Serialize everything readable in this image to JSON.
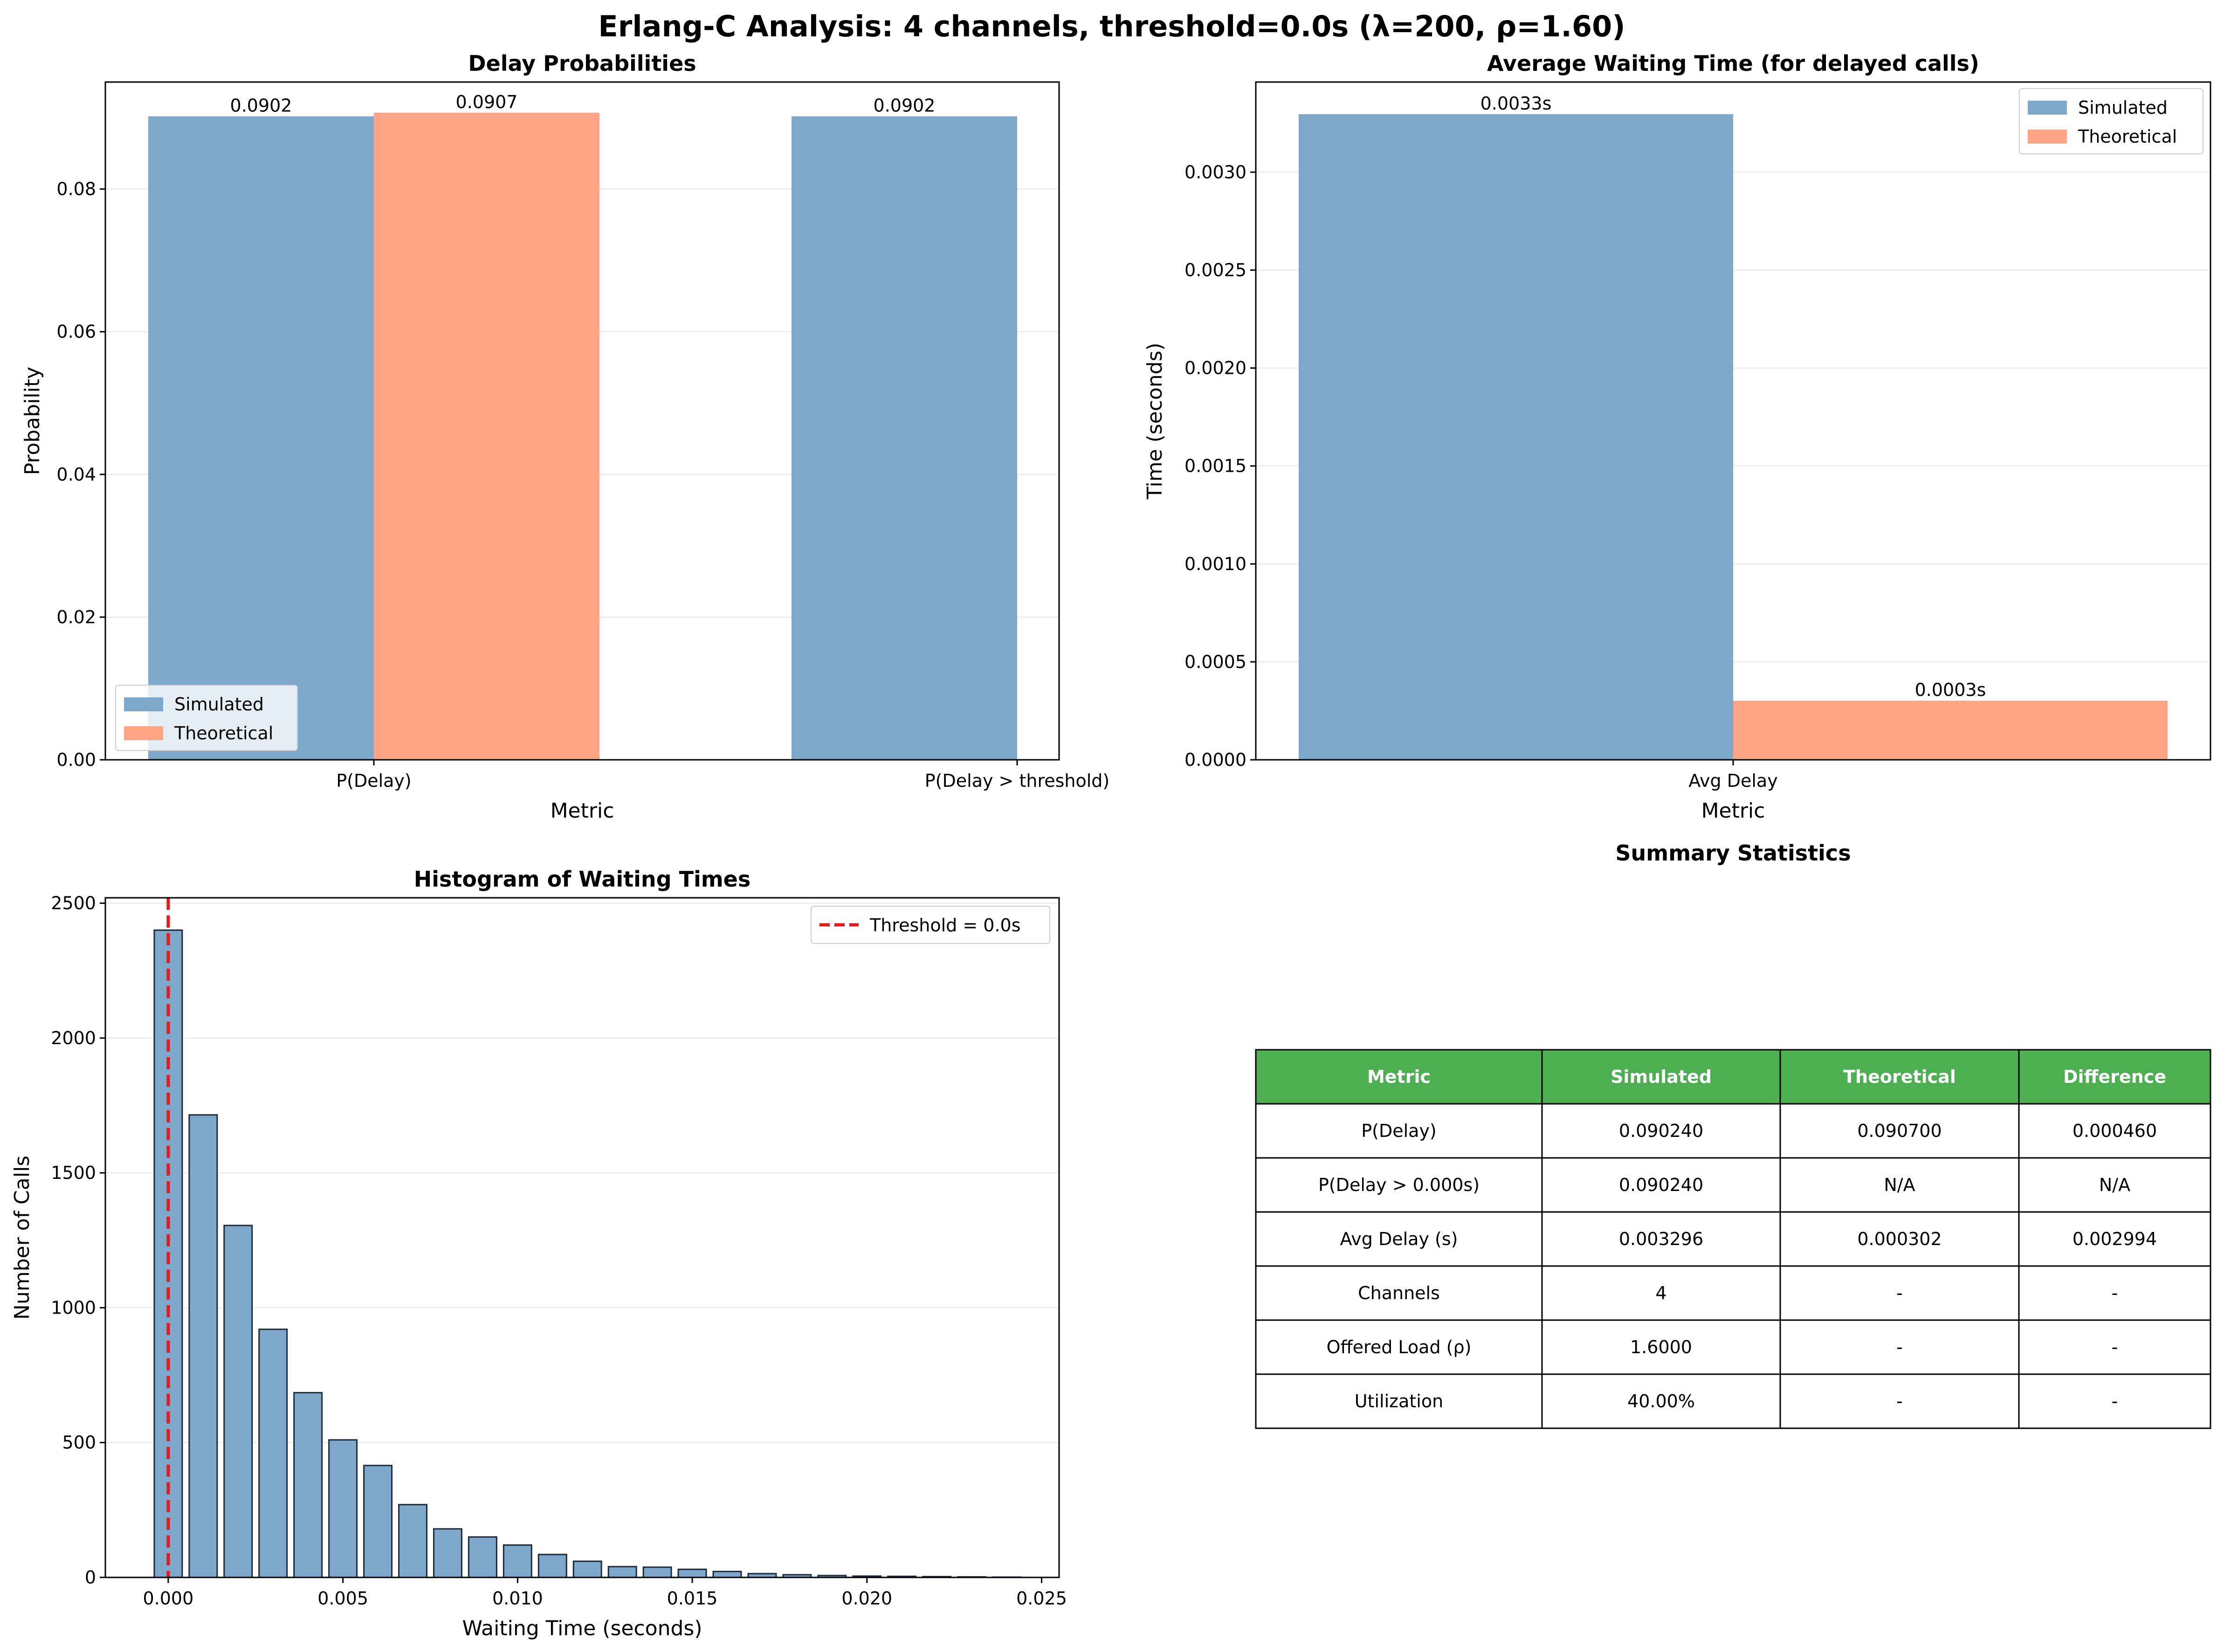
{
  "figure": {
    "title": "Erlang-C Analysis: 4 channels, threshold=0.0s (λ=200, ρ=1.60)"
  },
  "colors": {
    "simulated": "#7ea7cc",
    "theoretical": "#ffa585",
    "threshold_line": "#e41a1c",
    "table_header": "#4caf50",
    "grid": "#e6e6e6"
  },
  "chart_data": [
    {
      "type": "bar",
      "title": "Delay Probabilities",
      "xlabel": "Metric",
      "ylabel": "Probability",
      "categories": [
        "P(Delay)",
        "P(Delay > threshold)"
      ],
      "series": [
        {
          "name": "Simulated",
          "values": [
            0.0902,
            0.0902
          ],
          "labels": [
            "0.0902",
            "0.0902"
          ]
        },
        {
          "name": "Theoretical",
          "values": [
            0.0907,
            null
          ],
          "labels": [
            "0.0907",
            null
          ]
        }
      ],
      "ylim": [
        0,
        0.095
      ],
      "yticks": [
        "0.00",
        "0.02",
        "0.04",
        "0.06",
        "0.08"
      ],
      "grid": "y",
      "legend": "lower-left"
    },
    {
      "type": "bar",
      "title": "Average Waiting Time (for delayed calls)",
      "xlabel": "Metric",
      "ylabel": "Time (seconds)",
      "categories": [
        "Avg Delay"
      ],
      "series": [
        {
          "name": "Simulated",
          "values": [
            0.003296
          ],
          "labels": [
            "0.0033s"
          ]
        },
        {
          "name": "Theoretical",
          "values": [
            0.000302
          ],
          "labels": [
            "0.0003s"
          ]
        }
      ],
      "ylim": [
        0,
        0.00346
      ],
      "yticks": [
        "0.0000",
        "0.0005",
        "0.0010",
        "0.0015",
        "0.0020",
        "0.0025",
        "0.0030"
      ],
      "grid": "y",
      "legend": "upper-right"
    },
    {
      "type": "bar",
      "title": "Histogram of Waiting Times",
      "xlabel": "Waiting Time (seconds)",
      "ylabel": "Number of Calls",
      "bin_width": 0.001,
      "bin_centers": [
        0.0,
        0.001,
        0.002,
        0.003,
        0.004,
        0.005,
        0.006,
        0.007,
        0.008,
        0.009,
        0.01,
        0.011,
        0.012,
        0.013,
        0.014,
        0.015,
        0.016,
        0.017,
        0.018,
        0.019,
        0.02,
        0.021,
        0.022,
        0.023,
        0.024
      ],
      "counts": [
        2400,
        1715,
        1305,
        920,
        685,
        510,
        415,
        270,
        180,
        150,
        120,
        85,
        60,
        40,
        38,
        30,
        22,
        14,
        10,
        7,
        5,
        4,
        3,
        2,
        1
      ],
      "xlim": [
        -0.0018,
        0.0255
      ],
      "ylim": [
        0,
        2520
      ],
      "xticks": [
        "0.000",
        "0.005",
        "0.010",
        "0.015",
        "0.020",
        "0.025"
      ],
      "yticks": [
        "0",
        "500",
        "1000",
        "1500",
        "2000",
        "2500"
      ],
      "threshold": {
        "x": 0.0,
        "label": "Threshold = 0.0s"
      },
      "grid": "y",
      "legend": "upper-right"
    },
    {
      "type": "table",
      "title": "Summary Statistics",
      "columns": [
        "Metric",
        "Simulated",
        "Theoretical",
        "Difference"
      ],
      "rows": [
        [
          "P(Delay)",
          "0.090240",
          "0.090700",
          "0.000460"
        ],
        [
          "P(Delay > 0.000s)",
          "0.090240",
          "N/A",
          "N/A"
        ],
        [
          "Avg Delay (s)",
          "0.003296",
          "0.000302",
          "0.002994"
        ],
        [
          "Channels",
          "4",
          "-",
          "-"
        ],
        [
          "Offered Load (ρ)",
          "1.6000",
          "-",
          "-"
        ],
        [
          "Utilization",
          "40.00%",
          "-",
          "-"
        ]
      ]
    }
  ]
}
